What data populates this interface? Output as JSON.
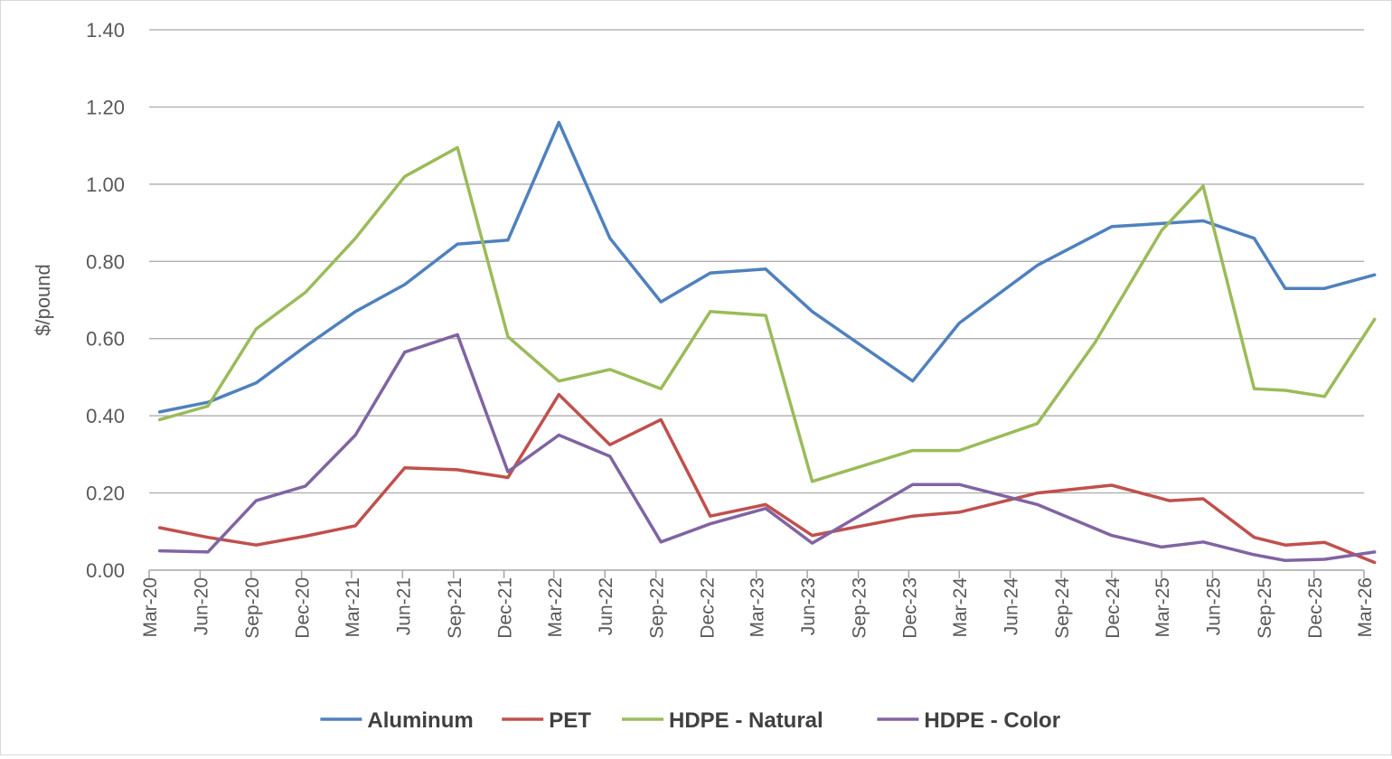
{
  "chart_data": {
    "type": "line",
    "title": "",
    "xlabel": "",
    "ylabel": "$/pound",
    "ylim": [
      0,
      1.4
    ],
    "yticks": [
      "0.00",
      "0.20",
      "0.40",
      "0.60",
      "0.80",
      "1.00",
      "1.20",
      "1.40"
    ],
    "grid": true,
    "legend_position": "bottom",
    "x_tick_labels": [
      "Mar-20",
      "Jun-20",
      "Sep-20",
      "Dec-20",
      "Mar-21",
      "Jun-21",
      "Sep-21",
      "Dec-21",
      "Mar-22",
      "Jun-22",
      "Sep-22",
      "Dec-22",
      "Mar-23",
      "Jun-23",
      "Sep-23",
      "Dec-23",
      "Mar-24",
      "Jun-24",
      "Sep-24",
      "Dec-24",
      "Mar-25",
      "Jun-25",
      "Sep-25",
      "Dec-25",
      "Mar-26"
    ],
    "series": [
      {
        "name": "Aluminum",
        "color": "#4f81bd",
        "points": [
          [
            "2020-03-20",
            0.41
          ],
          [
            "2020-06-15",
            0.435
          ],
          [
            "2020-09-10",
            0.485
          ],
          [
            "2020-12-08",
            0.58
          ],
          [
            "2021-03-08",
            0.67
          ],
          [
            "2021-06-05",
            0.74
          ],
          [
            "2021-09-08",
            0.845
          ],
          [
            "2021-12-08",
            0.855
          ],
          [
            "2022-03-10",
            1.16
          ],
          [
            "2022-06-10",
            0.86
          ],
          [
            "2022-09-10",
            0.695
          ],
          [
            "2022-12-08",
            0.77
          ],
          [
            "2023-03-18",
            0.78
          ],
          [
            "2023-06-10",
            0.67
          ],
          [
            "2023-12-08",
            0.49
          ],
          [
            "2024-03-01",
            0.64
          ],
          [
            "2024-07-20",
            0.79
          ],
          [
            "2024-12-01",
            0.89
          ],
          [
            "2025-05-15",
            0.905
          ],
          [
            "2025-08-15",
            0.86
          ],
          [
            "2025-10-10",
            0.73
          ],
          [
            "2025-12-20",
            0.73
          ],
          [
            "2026-03-20",
            0.765
          ]
        ]
      },
      {
        "name": "PET",
        "color": "#c0504d",
        "points": [
          [
            "2020-03-20",
            0.11
          ],
          [
            "2020-06-15",
            0.085
          ],
          [
            "2020-09-10",
            0.065
          ],
          [
            "2020-12-08",
            0.088
          ],
          [
            "2021-03-08",
            0.115
          ],
          [
            "2021-06-05",
            0.265
          ],
          [
            "2021-09-08",
            0.26
          ],
          [
            "2021-12-08",
            0.24
          ],
          [
            "2022-03-10",
            0.455
          ],
          [
            "2022-06-10",
            0.325
          ],
          [
            "2022-09-10",
            0.39
          ],
          [
            "2022-12-08",
            0.14
          ],
          [
            "2023-03-18",
            0.17
          ],
          [
            "2023-06-10",
            0.09
          ],
          [
            "2023-12-08",
            0.14
          ],
          [
            "2024-03-01",
            0.15
          ],
          [
            "2024-07-20",
            0.2
          ],
          [
            "2024-12-01",
            0.22
          ],
          [
            "2025-03-15",
            0.18
          ],
          [
            "2025-05-15",
            0.185
          ],
          [
            "2025-08-15",
            0.085
          ],
          [
            "2025-10-10",
            0.065
          ],
          [
            "2025-12-20",
            0.072
          ],
          [
            "2026-03-20",
            0.02
          ]
        ]
      },
      {
        "name": "HDPE - Natural",
        "color": "#9bbb59",
        "points": [
          [
            "2020-03-20",
            0.39
          ],
          [
            "2020-06-15",
            0.425
          ],
          [
            "2020-09-10",
            0.625
          ],
          [
            "2020-12-08",
            0.72
          ],
          [
            "2021-03-08",
            0.86
          ],
          [
            "2021-06-05",
            1.02
          ],
          [
            "2021-09-08",
            1.095
          ],
          [
            "2021-12-08",
            0.605
          ],
          [
            "2022-03-10",
            0.49
          ],
          [
            "2022-06-10",
            0.52
          ],
          [
            "2022-09-10",
            0.47
          ],
          [
            "2022-12-08",
            0.67
          ],
          [
            "2023-03-18",
            0.66
          ],
          [
            "2023-06-10",
            0.23
          ],
          [
            "2023-12-08",
            0.31
          ],
          [
            "2024-03-01",
            0.31
          ],
          [
            "2024-07-20",
            0.38
          ],
          [
            "2024-11-01",
            0.59
          ],
          [
            "2025-03-01",
            0.88
          ],
          [
            "2025-05-15",
            0.995
          ],
          [
            "2025-08-15",
            0.47
          ],
          [
            "2025-10-10",
            0.466
          ],
          [
            "2025-12-20",
            0.45
          ],
          [
            "2026-03-20",
            0.65
          ]
        ]
      },
      {
        "name": "HDPE - Color",
        "color": "#8064a2",
        "points": [
          [
            "2020-03-20",
            0.05
          ],
          [
            "2020-06-15",
            0.047
          ],
          [
            "2020-09-10",
            0.18
          ],
          [
            "2020-12-08",
            0.218
          ],
          [
            "2021-03-08",
            0.35
          ],
          [
            "2021-06-05",
            0.565
          ],
          [
            "2021-09-08",
            0.61
          ],
          [
            "2021-12-08",
            0.255
          ],
          [
            "2022-03-10",
            0.35
          ],
          [
            "2022-06-10",
            0.295
          ],
          [
            "2022-09-10",
            0.073
          ],
          [
            "2022-12-08",
            0.12
          ],
          [
            "2023-03-18",
            0.16
          ],
          [
            "2023-06-10",
            0.07
          ],
          [
            "2023-12-08",
            0.222
          ],
          [
            "2024-03-01",
            0.222
          ],
          [
            "2024-07-20",
            0.17
          ],
          [
            "2024-12-01",
            0.09
          ],
          [
            "2025-03-01",
            0.06
          ],
          [
            "2025-05-15",
            0.073
          ],
          [
            "2025-08-15",
            0.04
          ],
          [
            "2025-10-10",
            0.025
          ],
          [
            "2025-12-20",
            0.028
          ],
          [
            "2026-03-20",
            0.047
          ]
        ]
      }
    ]
  }
}
